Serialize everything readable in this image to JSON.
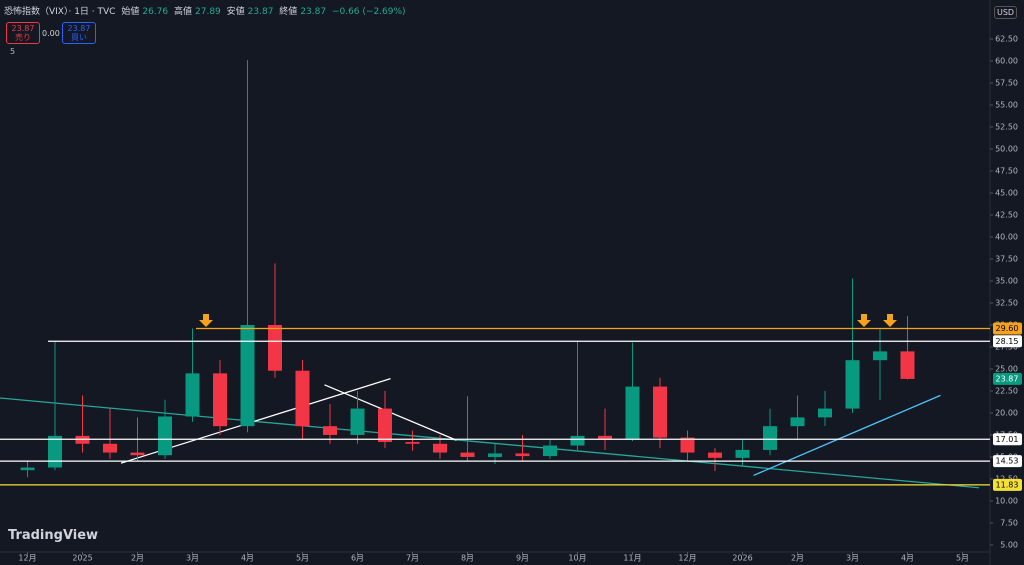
{
  "ui": {
    "symbol": "恐怖指数（VIX）· 1日 · TVC",
    "ohlc_labels": [
      "始値",
      "高値",
      "安値",
      "終値"
    ],
    "ohlc": [
      "26.76",
      "27.89",
      "23.87",
      "23.87"
    ],
    "change": "−0.66 (−2.69%)",
    "sell_price": "23.87",
    "sell": "売り",
    "spread": "0.00",
    "buy_price": "23.87",
    "buy": "買い",
    "indicator_count": "5",
    "currency": "USD",
    "brand": "TradingView"
  },
  "chart_data": {
    "type": "candlestick",
    "x": [
      0,
      0.5,
      1,
      1.5,
      2,
      2.5,
      3,
      3.5,
      4,
      4.5,
      5,
      5.5,
      6,
      6.5,
      7,
      7.5,
      8,
      8.5,
      9,
      9.5,
      10,
      10.5,
      11,
      11.5,
      12,
      12.5,
      13,
      13.5,
      14,
      14.5,
      15,
      15.5,
      16
    ],
    "open": [
      13.5,
      13.8,
      17.4,
      16.5,
      15.5,
      15.2,
      19.6,
      24.5,
      18.5,
      30,
      24.8,
      18.5,
      17.5,
      20.5,
      16.7,
      16.5,
      15.5,
      15,
      15.4,
      15.1,
      16.3,
      17.4,
      17,
      23,
      17.2,
      15.5,
      14.9,
      15.8,
      18.5,
      19.5,
      20.5,
      26,
      27
    ],
    "high": [
      14.5,
      28.2,
      22,
      20.5,
      19.5,
      21.5,
      29.6,
      26,
      60.1,
      37,
      26,
      21,
      22.5,
      22.5,
      18,
      17.5,
      21.9,
      16.5,
      17.5,
      17,
      28.2,
      20.5,
      28,
      24,
      18,
      16,
      17,
      20.5,
      22,
      22.5,
      35.3,
      29.5,
      31
    ],
    "low": [
      12.7,
      13.5,
      15.5,
      14.8,
      14.5,
      14.8,
      19,
      17.5,
      17.8,
      24,
      17,
      16.5,
      16.5,
      16,
      15.7,
      14.8,
      14.5,
      14.2,
      14.5,
      14.8,
      15.8,
      15.8,
      16.8,
      16,
      14.5,
      13.4,
      14,
      15.2,
      17,
      18.5,
      20,
      21.5,
      23.8
    ],
    "close": [
      13.8,
      17.4,
      16.5,
      15.5,
      15.2,
      19.6,
      24.5,
      18.5,
      30,
      24.8,
      18.5,
      17.5,
      20.5,
      16.7,
      16.5,
      15.5,
      15,
      15.4,
      15.1,
      16.3,
      17.4,
      17,
      23,
      17.2,
      15.5,
      14.9,
      15.8,
      18.5,
      19.5,
      20.5,
      26,
      27,
      23.87
    ],
    "up_color": "#089981",
    "down_color": "#f23645",
    "xlim": [
      -0.5,
      17.5
    ],
    "xticks": [
      {
        "value": 0,
        "label": "12月"
      },
      {
        "value": 1,
        "label": "2025"
      },
      {
        "value": 2,
        "label": "2月"
      },
      {
        "value": 3,
        "label": "3月"
      },
      {
        "value": 4,
        "label": "4月"
      },
      {
        "value": 5,
        "label": "5月"
      },
      {
        "value": 6,
        "label": "6月"
      },
      {
        "value": 7,
        "label": "7月"
      },
      {
        "value": 8,
        "label": "8月"
      },
      {
        "value": 9,
        "label": "9月"
      },
      {
        "value": 10,
        "label": "10月"
      },
      {
        "value": 11,
        "label": "11月"
      },
      {
        "value": 12,
        "label": "12月"
      },
      {
        "value": 13,
        "label": "2026"
      },
      {
        "value": 14,
        "label": "2月"
      },
      {
        "value": 15,
        "label": "3月"
      },
      {
        "value": 16,
        "label": "4月"
      },
      {
        "value": 17,
        "label": "5月"
      }
    ],
    "ylim": [
      4.2,
      63.75
    ],
    "yticks": [
      {
        "value": 5,
        "label": "5.00"
      },
      {
        "value": 7.5,
        "label": "7.50"
      },
      {
        "value": 10,
        "label": "10.00"
      },
      {
        "value": 12.5,
        "label": "12.50"
      },
      {
        "value": 15,
        "label": "15.00"
      },
      {
        "value": 17.5,
        "label": "17.50"
      },
      {
        "value": 20,
        "label": "20.00"
      },
      {
        "value": 22.5,
        "label": "22.50"
      },
      {
        "value": 25,
        "label": "25.00"
      },
      {
        "value": 27.5,
        "label": "27.50"
      },
      {
        "value": 30,
        "label": "30.00"
      },
      {
        "value": 32.5,
        "label": "32.50"
      },
      {
        "value": 35,
        "label": "35.00"
      },
      {
        "value": 37.5,
        "label": "37.50"
      },
      {
        "value": 40,
        "label": "40.00"
      },
      {
        "value": 42.5,
        "label": "42.50"
      },
      {
        "value": 45,
        "label": "45.00"
      },
      {
        "value": 47.5,
        "label": "47.50"
      },
      {
        "value": 50,
        "label": "50.00"
      },
      {
        "value": 52.5,
        "label": "52.50"
      },
      {
        "value": 55,
        "label": "55.00"
      },
      {
        "value": 57.5,
        "label": "57.50"
      },
      {
        "value": 60,
        "label": "60.00"
      },
      {
        "value": 62.5,
        "label": "62.50"
      }
    ],
    "grid": false,
    "hlines": [
      {
        "value": 29.6,
        "label": "29.60",
        "color": "#f7a21b"
      },
      {
        "value": 28.15,
        "label": "28.15",
        "color": "#ffffff"
      },
      {
        "value": 17.01,
        "label": "17.01",
        "color": "#ffffff"
      },
      {
        "value": 14.53,
        "label": "14.53",
        "color": "#ffffff"
      },
      {
        "value": 11.83,
        "label": "11.83",
        "color": "#f5e136"
      }
    ],
    "last_price": {
      "value": 23.87,
      "label": "23.87",
      "color": "#089981"
    },
    "trendlines": [
      {
        "x": [
          -0.5,
          17.3
        ],
        "y": [
          21.7,
          11.5
        ],
        "color": "#26a69a"
      },
      {
        "x": [
          13.2,
          16.6
        ],
        "y": [
          12.9,
          22
        ],
        "color": "#4fc3f7"
      },
      {
        "x": [
          1.7,
          6.6
        ],
        "y": [
          14.3,
          23.9
        ],
        "color": "#ffffff"
      },
      {
        "x": [
          5.4,
          7.8
        ],
        "y": [
          23.2,
          16.9
        ],
        "color": "#ffffff"
      }
    ]
  }
}
